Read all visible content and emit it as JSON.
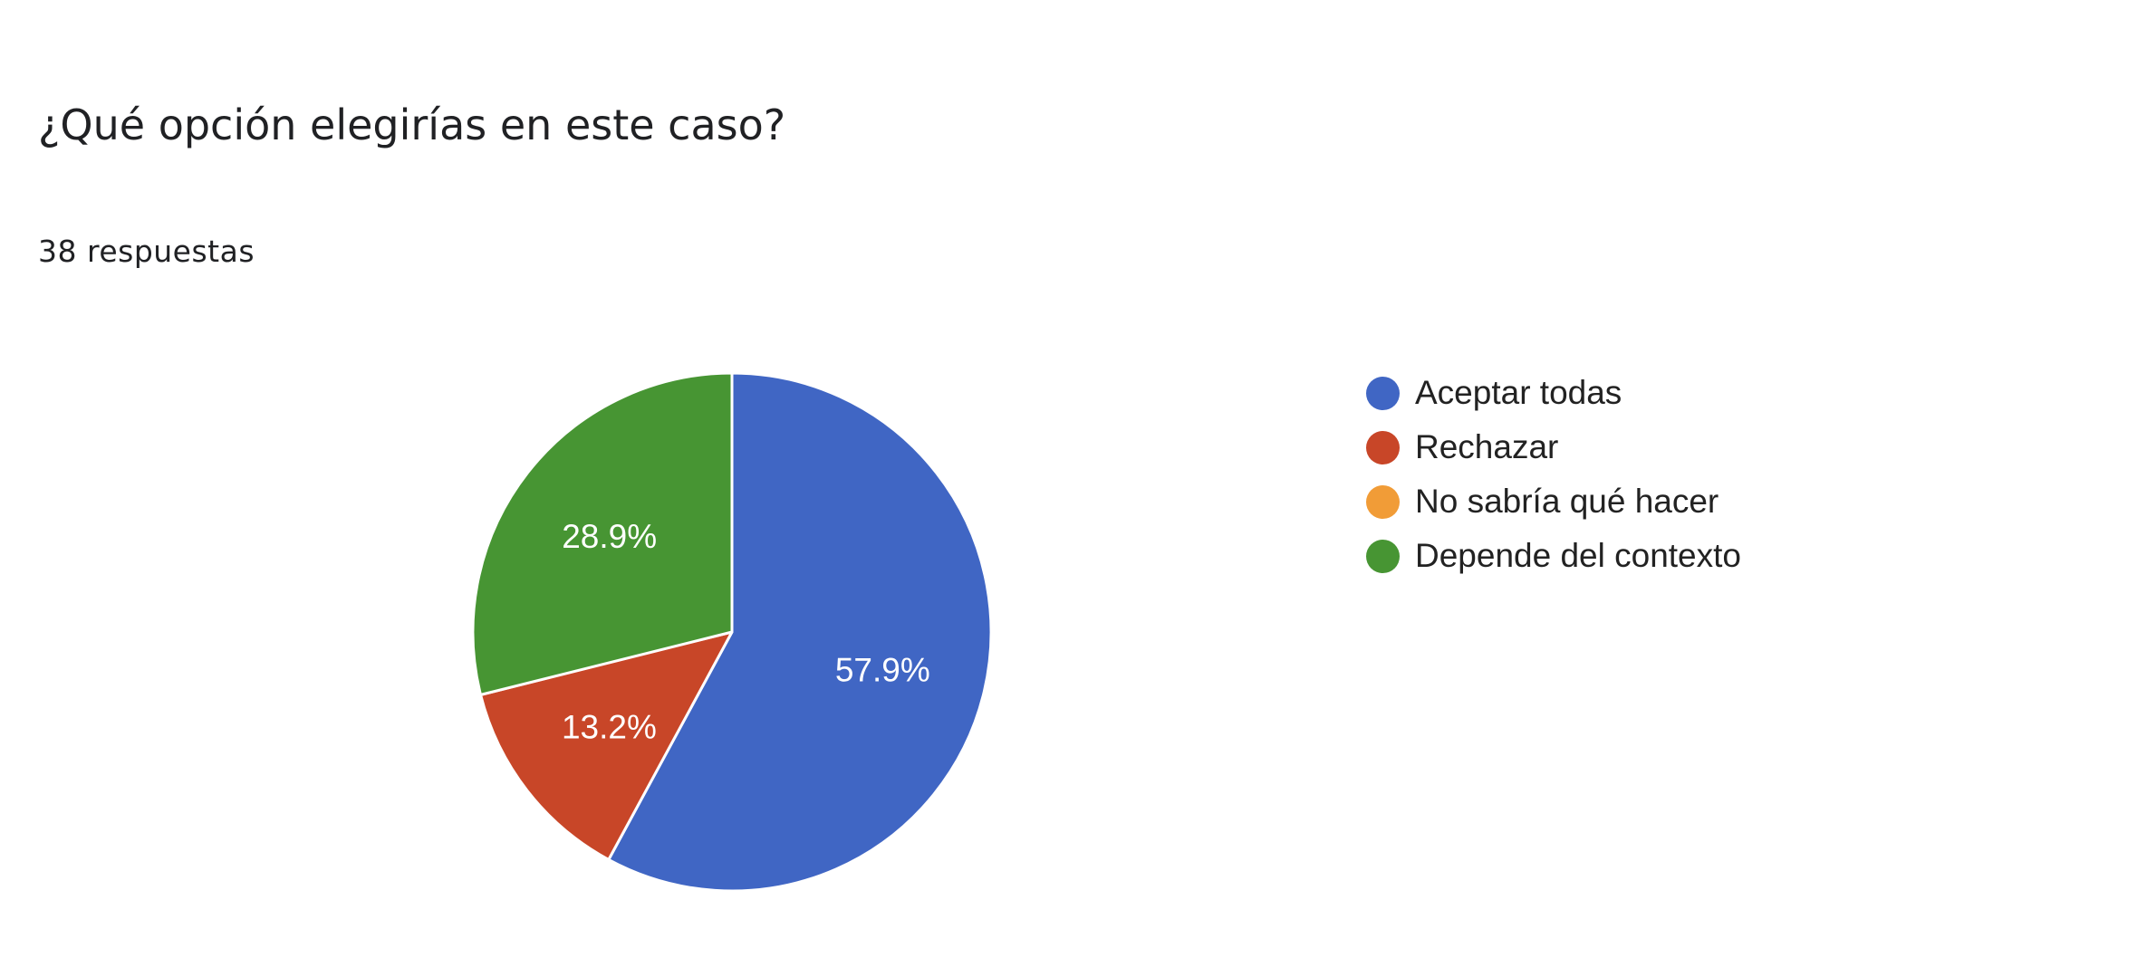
{
  "card": {
    "title": "¿Qué opción elegirías en este caso?",
    "response_count": "38 respuestas"
  },
  "colors": {
    "slice_border": "#ffffff",
    "label_text": "#ffffff"
  },
  "chart_data": {
    "type": "pie",
    "start_angle_deg": 90,
    "direction": "clockwise",
    "legend_position": "right",
    "slices": [
      {
        "label": "Aceptar todas",
        "percent": 57.9,
        "display": "57.9%",
        "color": "#4066C4"
      },
      {
        "label": "Rechazar",
        "percent": 13.2,
        "display": "13.2%",
        "color": "#C84628"
      },
      {
        "label": "No sabría qué hacer",
        "percent": 0,
        "display": "",
        "color": "#F19C37"
      },
      {
        "label": "Depende del contexto",
        "percent": 28.9,
        "display": "28.9%",
        "color": "#479533"
      }
    ]
  }
}
